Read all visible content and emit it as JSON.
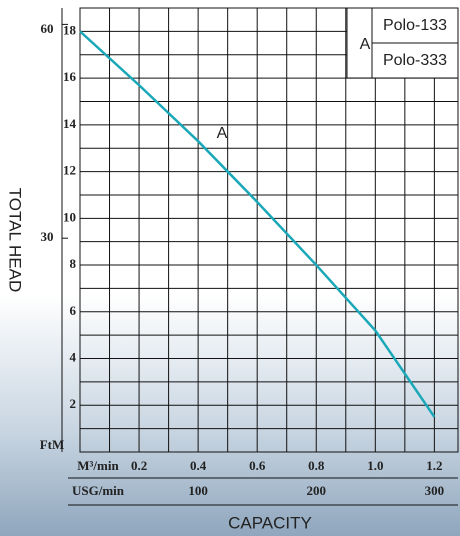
{
  "chart_data": {
    "type": "line",
    "y_title": "TOTAL HEAD",
    "x_title": "CAPACITY",
    "corner_label": "FtM",
    "x_unit": "M³/min",
    "x2_unit": "USG/min",
    "x": [
      0,
      0.2,
      0.4,
      0.6,
      0.8,
      1.0,
      1.2
    ],
    "series": [
      {
        "name": "A",
        "color": "#1aa8b8",
        "values": [
          18,
          15.7,
          13.3,
          10.7,
          8.0,
          5.2,
          1.5
        ]
      }
    ],
    "legend_models": [
      "Polo-133",
      "Polo-333"
    ],
    "xlim": [
      0,
      1.28
    ],
    "xticks": [
      0.2,
      0.4,
      0.6,
      0.8,
      {
        "value": 1.0,
        "label": "1.0"
      },
      1.2
    ],
    "x2lim": [
      0,
      320
    ],
    "x2ticks": [
      100,
      200,
      300
    ],
    "ylim": [
      0,
      19
    ],
    "yticks": [
      2,
      4,
      6,
      8,
      10,
      12,
      14,
      16,
      18
    ],
    "y2lim": [
      0,
      62.3
    ],
    "y2ticks": [
      30,
      60
    ],
    "grid": true,
    "minor_grid": true
  }
}
